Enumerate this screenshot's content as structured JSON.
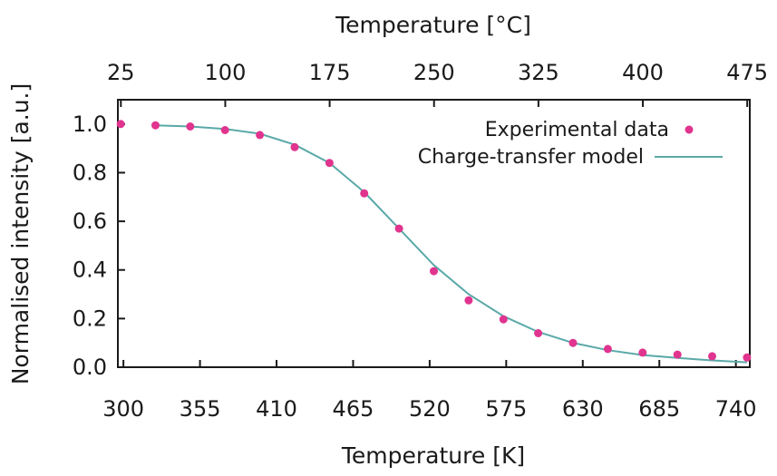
{
  "chart_data": {
    "type": "scatter",
    "xlabel": "Temperature [K]",
    "ylabel": "Normalised intensity [a.u.]",
    "x2label": "Temperature [°C]",
    "xlim": [
      296,
      750
    ],
    "ylim": [
      0,
      1.1
    ],
    "x2lim": [
      22.85,
      476.85
    ],
    "x_ticks": [
      "300",
      "355",
      "410",
      "465",
      "520",
      "575",
      "630",
      "685",
      "740"
    ],
    "y_ticks": [
      "0.0",
      "0.2",
      "0.4",
      "0.6",
      "0.8",
      "1.0"
    ],
    "x2_ticks": [
      "25",
      "100",
      "175",
      "250",
      "325",
      "400",
      "475"
    ],
    "grid": false,
    "legend_position": "top-right",
    "series": [
      {
        "name": "Experimental data",
        "kind": "points",
        "color": "#e0348f",
        "x": [
          298,
          323,
          348,
          373,
          398,
          423,
          448,
          473,
          498,
          523,
          548,
          573,
          598,
          623,
          648,
          673,
          698,
          723,
          748
        ],
        "y": [
          1.0,
          0.995,
          0.99,
          0.975,
          0.955,
          0.905,
          0.84,
          0.715,
          0.57,
          0.395,
          0.275,
          0.197,
          0.14,
          0.1,
          0.075,
          0.06,
          0.052,
          0.045,
          0.04
        ]
      },
      {
        "name": "Charge-transfer model",
        "kind": "line",
        "color": "#5aa9a8",
        "x": [
          323,
          348,
          373,
          398,
          423,
          448,
          473,
          498,
          523,
          548,
          573,
          598,
          623,
          648,
          673,
          698,
          723,
          748
        ],
        "y": [
          0.995,
          0.99,
          0.98,
          0.96,
          0.915,
          0.84,
          0.72,
          0.57,
          0.42,
          0.3,
          0.21,
          0.145,
          0.1,
          0.07,
          0.05,
          0.038,
          0.028,
          0.02
        ]
      }
    ]
  }
}
